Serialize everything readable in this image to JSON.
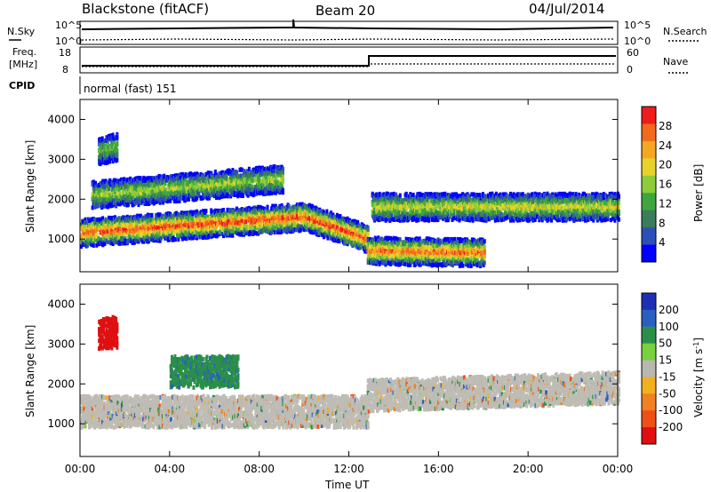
{
  "header": {
    "station": "Blackstone (fitACF)",
    "beam": "Beam 20",
    "date": "04/Jul/2014"
  },
  "status_panels": {
    "noise": {
      "left_label": "N.Sky",
      "right_label": "N.Search",
      "left_ticks": [
        "10^5",
        "10^0"
      ],
      "right_ticks": [
        "10^5",
        "10^0"
      ]
    },
    "freq": {
      "left_label_top": "Freq.",
      "left_label_bottom": "[MHz]",
      "right_label": "Nave",
      "left_ticks": [
        "18",
        "8"
      ],
      "right_ticks": [
        "60",
        "0"
      ]
    },
    "cpid": {
      "label": "CPID",
      "mode": "normal (fast) 151"
    }
  },
  "colors": {
    "power_scale": [
      "#0000ff",
      "#2c4fb8",
      "#3a7d5a",
      "#3fa63f",
      "#8ccc3a",
      "#e6d22a",
      "#f5a623",
      "#f26a1b",
      "#ee1c1c"
    ],
    "velocity_scale": [
      "#1f2fb5",
      "#2a5fc0",
      "#2b8f4a",
      "#7ad03f",
      "#b9b8b0",
      "#f0b020",
      "#f08020",
      "#f05018",
      "#e01010"
    ],
    "ground_scatter": "#bebcb4"
  },
  "chart_data": [
    {
      "type": "heatmap",
      "name": "power-panel",
      "xlabel": "",
      "ylabel": "Slant Range [km]",
      "x_ticks": [
        "00:00",
        "04:00",
        "08:00",
        "12:00",
        "16:00",
        "20:00",
        "00:00"
      ],
      "x_range_hours": [
        0,
        24
      ],
      "y_range_km": [
        180,
        4500
      ],
      "y_ticks": [
        1000,
        2000,
        3000,
        4000
      ],
      "colorbar": {
        "label": "Power [dB]",
        "ticks": [
          4,
          8,
          12,
          16,
          20,
          24,
          28
        ],
        "range": [
          0,
          32
        ]
      },
      "echo_bands": [
        {
          "start_h": 0.0,
          "end_h": 10.0,
          "range_km_start": 1150,
          "range_km_end": 1550,
          "peak_db": 30
        },
        {
          "start_h": 10.0,
          "end_h": 12.8,
          "range_km_start": 1550,
          "range_km_end": 1000,
          "peak_db": 30
        },
        {
          "start_h": 12.8,
          "end_h": 18.0,
          "range_km_start": 700,
          "range_km_end": 650,
          "peak_db": 28
        },
        {
          "start_h": 0.5,
          "end_h": 9.0,
          "range_km_start": 2100,
          "range_km_end": 2500,
          "peak_db": 18
        },
        {
          "start_h": 13.0,
          "end_h": 24.0,
          "range_km_start": 1800,
          "range_km_end": 1800,
          "peak_db": 20
        },
        {
          "start_h": 0.8,
          "end_h": 1.6,
          "range_km_start": 3200,
          "range_km_end": 3300,
          "peak_db": 16
        }
      ]
    },
    {
      "type": "heatmap",
      "name": "velocity-panel",
      "xlabel": "Time UT",
      "ylabel": "Slant Range [km]",
      "x_ticks": [
        "00:00",
        "04:00",
        "08:00",
        "12:00",
        "16:00",
        "20:00",
        "00:00"
      ],
      "x_range_hours": [
        0,
        24
      ],
      "y_range_km": [
        180,
        4500
      ],
      "y_ticks": [
        1000,
        2000,
        3000,
        4000
      ],
      "colorbar": {
        "label": "Velocity [m s^-1]",
        "ticks": [
          "200",
          "100",
          "50",
          "15",
          "-15",
          "-50",
          "-100",
          "-200"
        ]
      },
      "echo_bands": [
        {
          "start_h": 0.0,
          "end_h": 12.8,
          "range_km_start": 1300,
          "range_km_end": 1300,
          "velocity": 0
        },
        {
          "start_h": 12.8,
          "end_h": 24.0,
          "range_km_start": 1700,
          "range_km_end": 1900,
          "velocity": 0
        },
        {
          "start_h": 0.8,
          "end_h": 1.6,
          "range_km_start": 3250,
          "range_km_end": 3300,
          "velocity": -220
        },
        {
          "start_h": 4.0,
          "end_h": 7.0,
          "range_km_start": 2300,
          "range_km_end": 2300,
          "velocity": 60
        }
      ]
    }
  ]
}
